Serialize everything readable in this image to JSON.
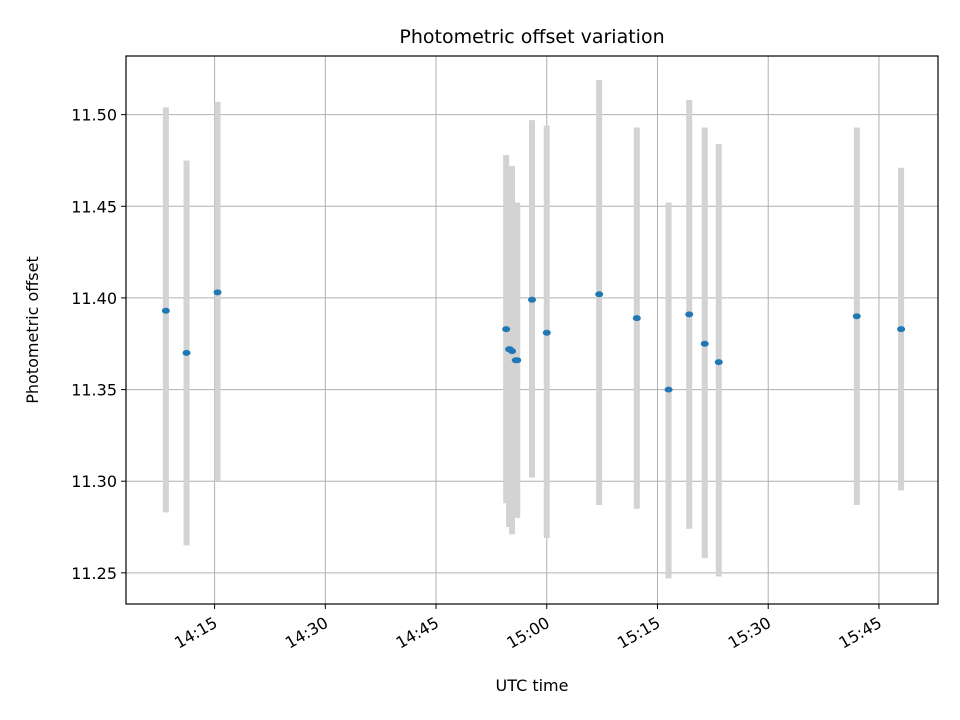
{
  "chart_data": {
    "type": "scatter",
    "title": "Photometric offset variation",
    "xlabel": "UTC time",
    "ylabel": "Photometric offset",
    "xlim": [
      "14:03",
      "15:53"
    ],
    "ylim": [
      11.233,
      11.532
    ],
    "xticks": [
      "14:15",
      "14:30",
      "14:45",
      "15:00",
      "15:15",
      "15:30",
      "15:45"
    ],
    "yticks": [
      "11.25",
      "11.30",
      "11.35",
      "11.40",
      "11.45",
      "11.50"
    ],
    "grid": true,
    "series": [
      {
        "marker_color": "#1f77b4",
        "error_color": "#d3d3d3",
        "points": [
          {
            "x": "14:08.4",
            "y": 11.393,
            "ylo": 11.283,
            "yhi": 11.504
          },
          {
            "x": "14:11.2",
            "y": 11.37,
            "ylo": 11.265,
            "yhi": 11.475
          },
          {
            "x": "14:15.4",
            "y": 11.403,
            "ylo": 11.3,
            "yhi": 11.507
          },
          {
            "x": "14:54.5",
            "y": 11.383,
            "ylo": 11.288,
            "yhi": 11.478
          },
          {
            "x": "14:54.9",
            "y": 11.372,
            "ylo": 11.275,
            "yhi": 11.47
          },
          {
            "x": "14:55.3",
            "y": 11.371,
            "ylo": 11.271,
            "yhi": 11.472
          },
          {
            "x": "14:55.8",
            "y": 11.366,
            "ylo": 11.28,
            "yhi": 11.452
          },
          {
            "x": "14:56.0",
            "y": 11.366,
            "ylo": 11.28,
            "yhi": 11.452
          },
          {
            "x": "14:55.0",
            "y": 11.372,
            "ylo": 11.275,
            "yhi": 11.47
          },
          {
            "x": "14:58.0",
            "y": 11.399,
            "ylo": 11.302,
            "yhi": 11.497
          },
          {
            "x": "15:00.0",
            "y": 11.381,
            "ylo": 11.269,
            "yhi": 11.494
          },
          {
            "x": "15:07.1",
            "y": 11.402,
            "ylo": 11.287,
            "yhi": 11.519
          },
          {
            "x": "15:12.2",
            "y": 11.389,
            "ylo": 11.285,
            "yhi": 11.493
          },
          {
            "x": "15:16.5",
            "y": 11.35,
            "ylo": 11.247,
            "yhi": 11.452
          },
          {
            "x": "15:19.3",
            "y": 11.391,
            "ylo": 11.274,
            "yhi": 11.508
          },
          {
            "x": "15:21.4",
            "y": 11.375,
            "ylo": 11.258,
            "yhi": 11.493
          },
          {
            "x": "15:23.3",
            "y": 11.365,
            "ylo": 11.248,
            "yhi": 11.484
          },
          {
            "x": "15:42.0",
            "y": 11.39,
            "ylo": 11.287,
            "yhi": 11.493
          },
          {
            "x": "15:48.0",
            "y": 11.383,
            "ylo": 11.295,
            "yhi": 11.471
          }
        ]
      }
    ]
  }
}
